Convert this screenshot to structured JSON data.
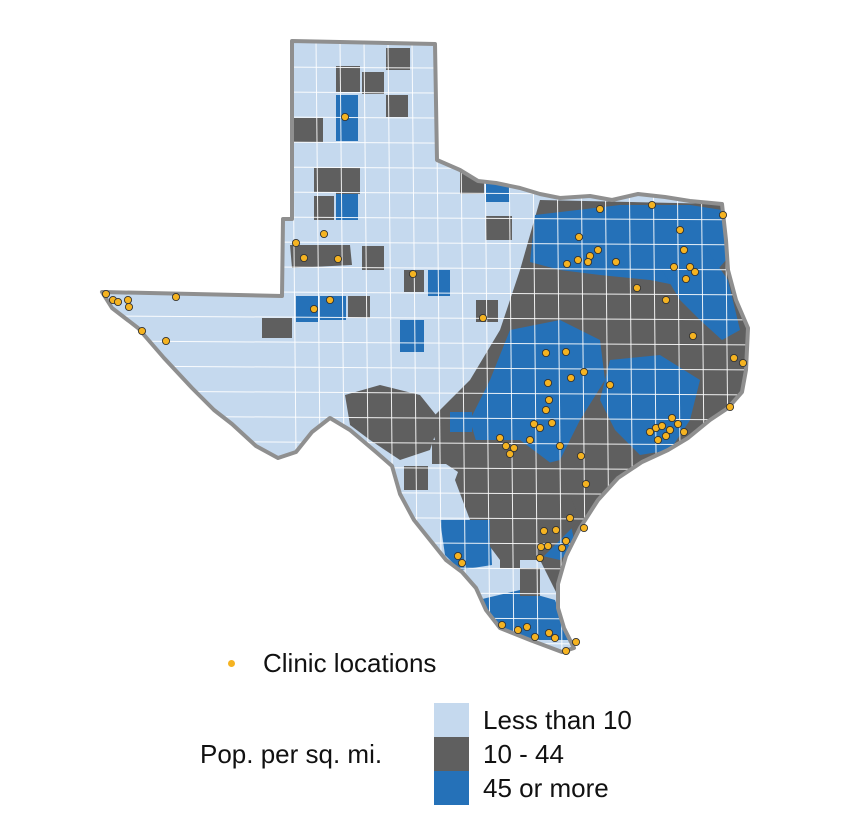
{
  "legend": {
    "clinic_label": "Clinic locations",
    "density_title": "Pop. per sq. mi.",
    "categories": [
      {
        "label": "Less than 10",
        "color": "#c5d9ee"
      },
      {
        "label": "10 - 44",
        "color": "#5f5f5f"
      },
      {
        "label": "45 or more",
        "color": "#2571b8"
      }
    ],
    "clinic_color": "#f5b321"
  },
  "map": {
    "outline_color": "#8f8f8f",
    "county_border_color": "#ffffff"
  }
}
